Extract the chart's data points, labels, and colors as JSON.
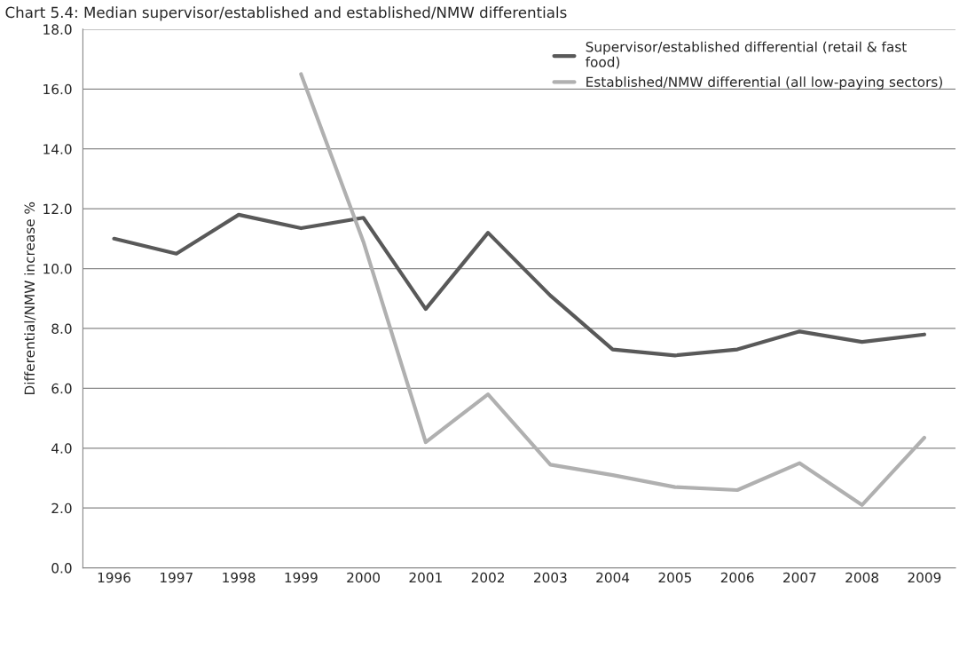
{
  "chart_data": {
    "type": "line",
    "title": "Chart 5.4: Median supervisor/established and established/NMW differentials",
    "ylabel": "Differential/NMW increase %",
    "categories": [
      "1996",
      "1997",
      "1998",
      "1999",
      "2000",
      "2001",
      "2002",
      "2003",
      "2004",
      "2005",
      "2006",
      "2007",
      "2008",
      "2009"
    ],
    "series": [
      {
        "name": "Supervisor/established differential (retail & fast food)",
        "color": "#595959",
        "values": [
          11.0,
          10.5,
          11.8,
          11.35,
          11.7,
          8.65,
          11.2,
          9.1,
          7.3,
          7.1,
          7.3,
          7.9,
          7.55,
          7.8
        ]
      },
      {
        "name": "Established/NMW differential (all low-paying sectors)",
        "color": "#b0b0b0",
        "values": [
          null,
          null,
          null,
          16.5,
          10.9,
          4.2,
          5.8,
          3.45,
          3.1,
          2.7,
          2.6,
          3.5,
          2.1,
          4.35
        ]
      }
    ],
    "ylim": [
      0,
      18
    ],
    "yticks": [
      {
        "value": 0,
        "label": "0.0"
      },
      {
        "value": 2,
        "label": "2.0"
      },
      {
        "value": 4,
        "label": "4.0"
      },
      {
        "value": 6,
        "label": "6.0"
      },
      {
        "value": 8,
        "label": "8.0"
      },
      {
        "value": 10,
        "label": "10.0"
      },
      {
        "value": 12,
        "label": "12.0"
      },
      {
        "value": 14,
        "label": "14.0"
      },
      {
        "value": 16,
        "label": "16.0"
      },
      {
        "value": 18,
        "label": "18.0"
      }
    ],
    "grid": "y",
    "legend": "top right",
    "marker": "none",
    "line_style": "solid"
  }
}
